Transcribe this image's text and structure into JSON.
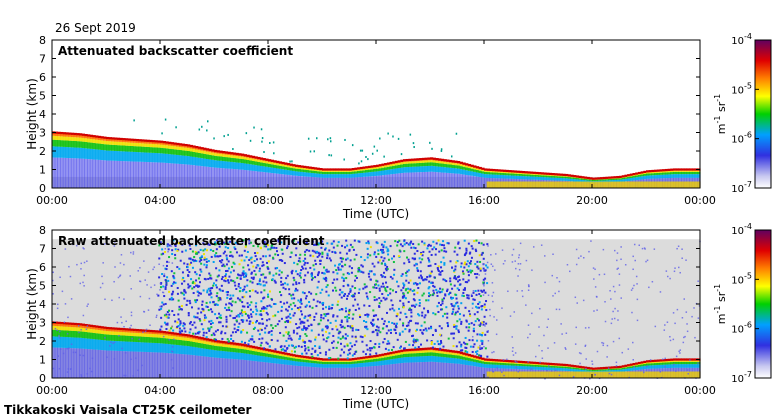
{
  "header": {
    "date": "26 Sept 2019"
  },
  "footer": {
    "instrument": "Tikkakoski Vaisala CT25K ceilometer"
  },
  "chart_data": [
    {
      "type": "heatmap",
      "title": "Attenuated backscatter coefficient",
      "xlabel": "Time (UTC)",
      "ylabel": "Height (km)",
      "x_ticks": [
        "00:00",
        "04:00",
        "08:00",
        "12:00",
        "16:00",
        "20:00",
        "00:00"
      ],
      "y_ticks": [
        "0",
        "1",
        "2",
        "3",
        "4",
        "5",
        "6",
        "7",
        "8"
      ],
      "xlim_hours": [
        0,
        24
      ],
      "ylim_km": [
        0,
        8
      ],
      "colorbar": {
        "unit_base": "m",
        "unit_exp": "-1",
        "unit_sr": "sr",
        "unit_sr_exp": "-1",
        "ticks": [
          {
            "base": "10",
            "exp": "-7"
          },
          {
            "base": "10",
            "exp": "-6"
          },
          {
            "base": "10",
            "exp": "-5"
          },
          {
            "base": "10",
            "exp": "-4"
          }
        ]
      },
      "layer_height_km": [
        {
          "hour": 0,
          "km": 3.0
        },
        {
          "hour": 1,
          "km": 2.9
        },
        {
          "hour": 2,
          "km": 2.7
        },
        {
          "hour": 3,
          "km": 2.6
        },
        {
          "hour": 4,
          "km": 2.5
        },
        {
          "hour": 5,
          "km": 2.3
        },
        {
          "hour": 6,
          "km": 2.0
        },
        {
          "hour": 7,
          "km": 1.8
        },
        {
          "hour": 8,
          "km": 1.5
        },
        {
          "hour": 9,
          "km": 1.2
        },
        {
          "hour": 10,
          "km": 1.0
        },
        {
          "hour": 11,
          "km": 1.0
        },
        {
          "hour": 12,
          "km": 1.2
        },
        {
          "hour": 13,
          "km": 1.5
        },
        {
          "hour": 14,
          "km": 1.6
        },
        {
          "hour": 15,
          "km": 1.4
        },
        {
          "hour": 16,
          "km": 1.0
        },
        {
          "hour": 17,
          "km": 0.9
        },
        {
          "hour": 18,
          "km": 0.8
        },
        {
          "hour": 19,
          "km": 0.7
        },
        {
          "hour": 20,
          "km": 0.5
        },
        {
          "hour": 21,
          "km": 0.6
        },
        {
          "hour": 22,
          "km": 0.9
        },
        {
          "hour": 23,
          "km": 1.0
        },
        {
          "hour": 24,
          "km": 1.0
        }
      ],
      "noise": false
    },
    {
      "type": "heatmap",
      "title": "Raw attenuated backscatter coefficient",
      "xlabel": "Time (UTC)",
      "ylabel": "Height (km)",
      "x_ticks": [
        "00:00",
        "04:00",
        "08:00",
        "12:00",
        "16:00",
        "20:00",
        "00:00"
      ],
      "y_ticks": [
        "0",
        "1",
        "2",
        "3",
        "4",
        "5",
        "6",
        "7",
        "8"
      ],
      "xlim_hours": [
        0,
        24
      ],
      "ylim_km": [
        0,
        8
      ],
      "colorbar": {
        "unit_base": "m",
        "unit_exp": "-1",
        "unit_sr": "sr",
        "unit_sr_exp": "-1",
        "ticks": [
          {
            "base": "10",
            "exp": "-7"
          },
          {
            "base": "10",
            "exp": "-6"
          },
          {
            "base": "10",
            "exp": "-5"
          },
          {
            "base": "10",
            "exp": "-4"
          }
        ]
      },
      "layer_height_km": [
        {
          "hour": 0,
          "km": 3.0
        },
        {
          "hour": 1,
          "km": 2.9
        },
        {
          "hour": 2,
          "km": 2.7
        },
        {
          "hour": 3,
          "km": 2.6
        },
        {
          "hour": 4,
          "km": 2.5
        },
        {
          "hour": 5,
          "km": 2.3
        },
        {
          "hour": 6,
          "km": 2.0
        },
        {
          "hour": 7,
          "km": 1.8
        },
        {
          "hour": 8,
          "km": 1.5
        },
        {
          "hour": 9,
          "km": 1.2
        },
        {
          "hour": 10,
          "km": 1.0
        },
        {
          "hour": 11,
          "km": 1.0
        },
        {
          "hour": 12,
          "km": 1.2
        },
        {
          "hour": 13,
          "km": 1.5
        },
        {
          "hour": 14,
          "km": 1.6
        },
        {
          "hour": 15,
          "km": 1.4
        },
        {
          "hour": 16,
          "km": 1.0
        },
        {
          "hour": 17,
          "km": 0.9
        },
        {
          "hour": 18,
          "km": 0.8
        },
        {
          "hour": 19,
          "km": 0.7
        },
        {
          "hour": 20,
          "km": 0.5
        },
        {
          "hour": 21,
          "km": 0.6
        },
        {
          "hour": 22,
          "km": 0.9
        },
        {
          "hour": 23,
          "km": 1.0
        },
        {
          "hour": 24,
          "km": 1.0
        }
      ],
      "noise": true,
      "noise_window_hours": [
        4.5,
        15.5
      ],
      "noise_top_km": 7.5
    }
  ]
}
